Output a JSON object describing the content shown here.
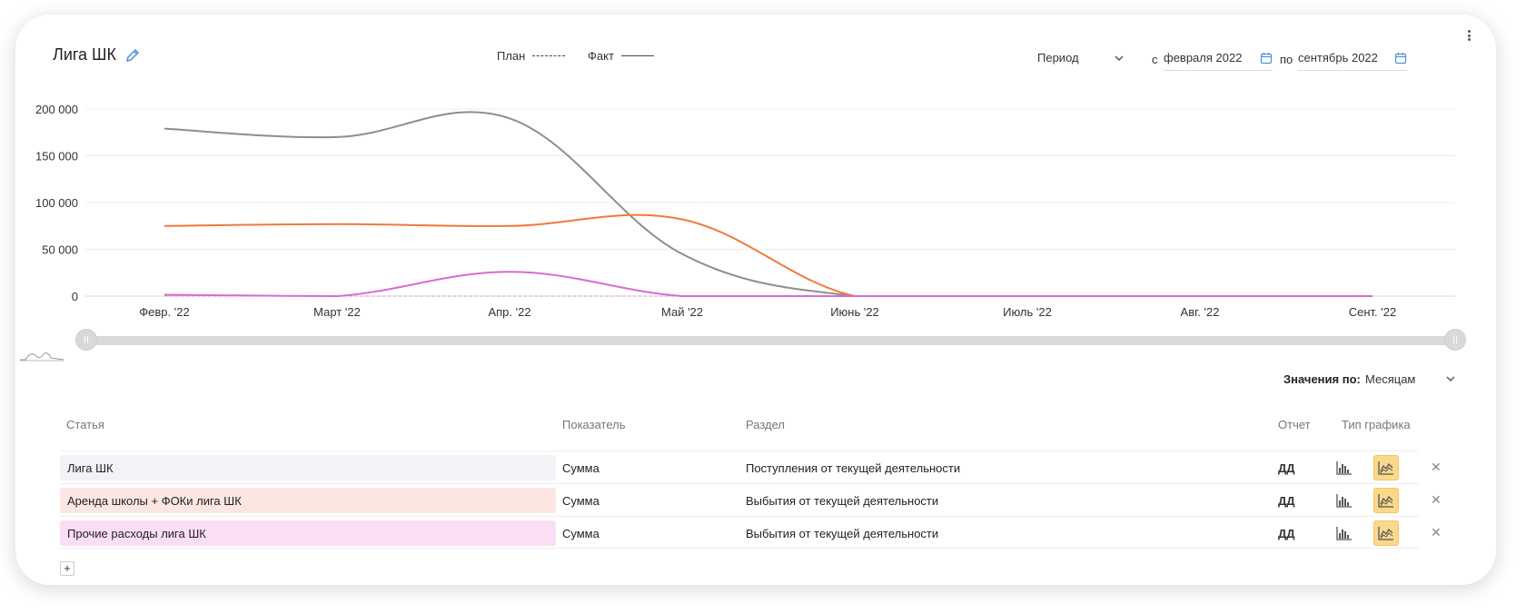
{
  "header": {
    "title": "Лига ШК",
    "legend_plan": "План",
    "legend_fact": "Факт",
    "period_label": "Период",
    "from_label": "с",
    "from_value": "февраля 2022",
    "to_label": "по",
    "to_value": "сентябрь 2022"
  },
  "chart_data": {
    "type": "line",
    "categories": [
      "Февр. '22",
      "Март '22",
      "Апр. '22",
      "Май '22",
      "Июнь '22",
      "Июль '22",
      "Авг. '22",
      "Сент. '22"
    ],
    "y_ticks": [
      "0",
      "50 000",
      "100 000",
      "150 000",
      "200 000"
    ],
    "ylim": [
      0,
      200000
    ],
    "grid": true,
    "series": [
      {
        "values": [
          179000,
          170000,
          190000,
          45000,
          0,
          0,
          0,
          0
        ],
        "color": "#8e8e8e"
      },
      {
        "values": [
          75000,
          77000,
          75000,
          82000,
          0,
          0,
          0,
          0
        ],
        "color": "#f07a3a"
      },
      {
        "values": [
          1500,
          0,
          26000,
          0,
          0,
          0,
          0,
          0
        ],
        "color": "#d96bd1"
      }
    ]
  },
  "controls": {
    "values_by_label": "Значения по:",
    "values_by_value": "Месяцам"
  },
  "table": {
    "headers": {
      "article": "Статья",
      "indicator": "Показатель",
      "section": "Раздел",
      "report": "Отчет",
      "chart_type": "Тип графика"
    },
    "rows": [
      {
        "article": "Лига ШК",
        "indicator": "Сумма",
        "section": "Поступления от текущей деятельности",
        "report": "ДД",
        "color": "#f3f3f7"
      },
      {
        "article": "Аренда школы + ФОКи лига ШК",
        "indicator": "Сумма",
        "section": "Выбытия от текущей деятельности",
        "report": "ДД",
        "color": "#fbe6e1"
      },
      {
        "article": "Прочие расходы лига ШК",
        "indicator": "Сумма",
        "section": "Выбытия от текущей деятельности",
        "report": "ДД",
        "color": "#f9def5"
      }
    ]
  },
  "icons": {
    "edit": "pencil-icon",
    "calendar": "calendar-icon",
    "chevron": "chevron-down-icon",
    "bar_type": "bar-chart-icon",
    "area_type": "area-chart-icon",
    "close": "close-icon",
    "add": "plus-icon",
    "menu": "kebab-menu-icon"
  },
  "colors": {
    "accent": "#4a90e2",
    "active_type": "#fbd98c"
  }
}
